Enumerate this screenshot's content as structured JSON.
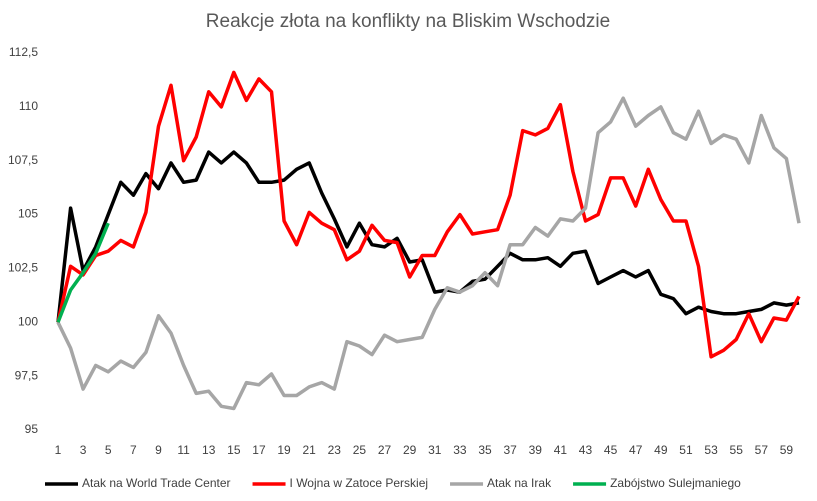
{
  "chart_data": {
    "type": "line",
    "title": "Reakcje złota na konflikty na Bliskim Wschodzie",
    "x": [
      1,
      2,
      3,
      4,
      5,
      6,
      7,
      8,
      9,
      10,
      11,
      12,
      13,
      14,
      15,
      16,
      17,
      18,
      19,
      20,
      21,
      22,
      23,
      24,
      25,
      26,
      27,
      28,
      29,
      30,
      31,
      32,
      33,
      34,
      35,
      36,
      37,
      38,
      39,
      40,
      41,
      42,
      43,
      44,
      45,
      46,
      47,
      48,
      49,
      50,
      51,
      52,
      53,
      54,
      55,
      56,
      57,
      58,
      59,
      60
    ],
    "xlim": [
      1,
      60
    ],
    "xticks": [
      1,
      3,
      5,
      7,
      9,
      11,
      13,
      15,
      17,
      19,
      21,
      23,
      25,
      27,
      29,
      31,
      33,
      35,
      37,
      39,
      41,
      43,
      45,
      47,
      49,
      51,
      53,
      55,
      57,
      59
    ],
    "ylim": [
      95,
      112.5
    ],
    "yticks": [
      95,
      {
        "value": 97.5,
        "label": "97,5"
      },
      100,
      {
        "value": 102.5,
        "label": "102,5"
      },
      105,
      {
        "value": 107.5,
        "label": "107,5"
      },
      110,
      {
        "value": 112.5,
        "label": "112,5"
      }
    ],
    "grid": false,
    "legend": "bottom",
    "series": [
      {
        "name": "Atak na World Trade Center",
        "color": "#000000",
        "values": [
          100,
          105.3,
          102.4,
          103.5,
          105,
          106.5,
          105.9,
          106.9,
          106.2,
          107.4,
          106.5,
          106.6,
          107.9,
          107.4,
          107.9,
          107.4,
          106.5,
          106.5,
          106.6,
          107.1,
          107.4,
          106,
          104.8,
          103.5,
          104.6,
          103.6,
          103.5,
          103.9,
          102.8,
          102.9,
          101.4,
          101.5,
          101.4,
          101.9,
          102,
          102.6,
          103.2,
          102.9,
          102.9,
          103,
          102.6,
          103.2,
          103.3,
          101.8,
          102.1,
          102.4,
          102.1,
          102.4,
          101.3,
          101.1,
          100.4,
          100.7,
          100.5,
          100.4,
          100.4,
          100.5,
          100.6,
          100.9,
          100.8,
          100.9
        ]
      },
      {
        "name": "I Wojna w Zatoce Perskiej",
        "color": "#ff0000",
        "values": [
          100,
          102.6,
          102.2,
          103.1,
          103.3,
          103.8,
          103.5,
          105.1,
          109.1,
          111,
          107.5,
          108.6,
          110.7,
          110,
          111.6,
          110.3,
          111.3,
          110.7,
          104.7,
          103.6,
          105.1,
          104.6,
          104.3,
          102.9,
          103.3,
          104.5,
          103.8,
          103.7,
          102.1,
          103.1,
          103.1,
          104.2,
          105,
          104.1,
          104.2,
          104.3,
          105.9,
          108.9,
          108.7,
          109,
          110.1,
          107,
          104.7,
          105,
          106.7,
          106.7,
          105.4,
          107.1,
          105.7,
          104.7,
          104.7,
          102.6,
          98.4,
          98.7,
          99.2,
          100.4,
          99.1,
          100.2,
          100.1,
          101.2
        ]
      },
      {
        "name": "Atak na Irak",
        "color": "#a6a6a6",
        "values": [
          100,
          98.8,
          96.9,
          98,
          97.7,
          98.2,
          97.9,
          98.6,
          100.3,
          99.5,
          98,
          96.7,
          96.8,
          96.1,
          96,
          97.2,
          97.1,
          97.6,
          96.6,
          96.6,
          97,
          97.2,
          96.9,
          99.1,
          98.9,
          98.5,
          99.4,
          99.1,
          99.2,
          99.3,
          100.6,
          101.6,
          101.4,
          101.7,
          102.3,
          101.7,
          103.6,
          103.6,
          104.4,
          104,
          104.8,
          104.7,
          105.3,
          108.8,
          109.3,
          110.4,
          109.1,
          109.6,
          110,
          108.8,
          108.5,
          109.8,
          108.3,
          108.7,
          108.5,
          107.4,
          109.6,
          108.1,
          107.6,
          104.6
        ]
      },
      {
        "name": "Zabójstwo Sulejmaniego",
        "color": "#00b050",
        "values": [
          100,
          101.5,
          102.3,
          103.2,
          104.6,
          null,
          null,
          null,
          null,
          null,
          null,
          null,
          null,
          null,
          null,
          null,
          null,
          null,
          null,
          null,
          null,
          null,
          null,
          null,
          null,
          null,
          null,
          null,
          null,
          null,
          null,
          null,
          null,
          null,
          null,
          null,
          null,
          null,
          null,
          null,
          null,
          null,
          null,
          null,
          null,
          null,
          null,
          null,
          null,
          null,
          null,
          null,
          null,
          null,
          null,
          null,
          null,
          null,
          null,
          null
        ]
      }
    ]
  }
}
